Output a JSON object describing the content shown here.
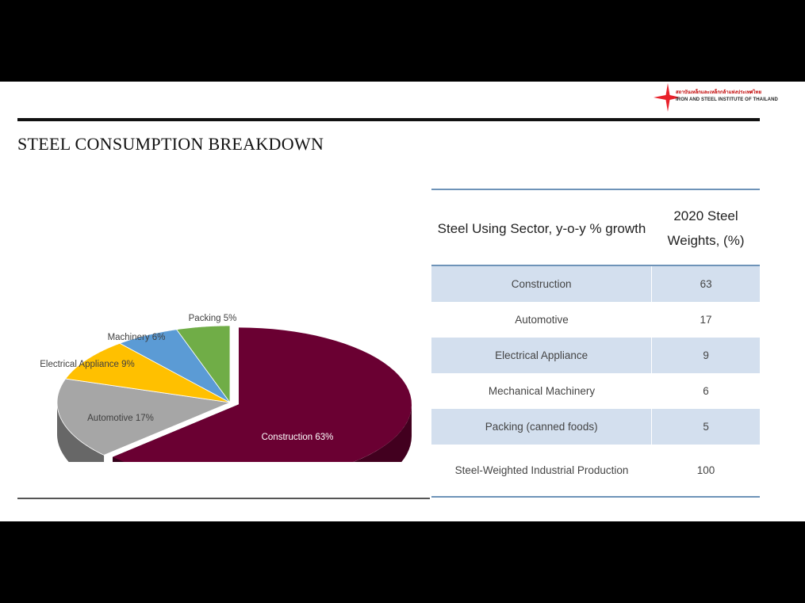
{
  "slide": {
    "title": "STEEL CONSUMPTION BREAKDOWN",
    "logo": {
      "thai_text": "สถาบันเหล็กและเหล็กกล้าแห่งประเทศไทย",
      "english_text": "IRON AND STEEL INSTITUTE OF THAILAND",
      "star_color": "#e8202a"
    }
  },
  "chart_data": {
    "type": "pie",
    "style": "3d",
    "title": "",
    "slices": [
      {
        "label": "Construction",
        "value": 63,
        "display": "Construction 63%",
        "color": "#6a0032"
      },
      {
        "label": "Automotive",
        "value": 17,
        "display": "Automotive 17%",
        "color": "#a6a6a6"
      },
      {
        "label": "Electrical Appliance",
        "value": 9,
        "display": "Electrical Appliance 9%",
        "color": "#ffc000"
      },
      {
        "label": "Machinery",
        "value": 6,
        "display": "Machinery 6%",
        "color": "#5b9bd5"
      },
      {
        "label": "Packing",
        "value": 5,
        "display": "Packing  5%",
        "color": "#70ad47"
      }
    ]
  },
  "table": {
    "headers": [
      "Steel Using Sector, y-o-y % growth",
      "2020 Steel Weights, (%)"
    ],
    "rows": [
      {
        "sector": "Construction",
        "weight": "63"
      },
      {
        "sector": "Automotive",
        "weight": "17"
      },
      {
        "sector": "Electrical  Appliance",
        "weight": "9"
      },
      {
        "sector": "Mechanical Machinery",
        "weight": "6"
      },
      {
        "sector": "Packing (canned foods)",
        "weight": "5"
      },
      {
        "sector": "Steel-Weighted Industrial Production",
        "weight": "100"
      }
    ],
    "shade_color": "#d3dfee",
    "border_color": "#6e93b8"
  }
}
